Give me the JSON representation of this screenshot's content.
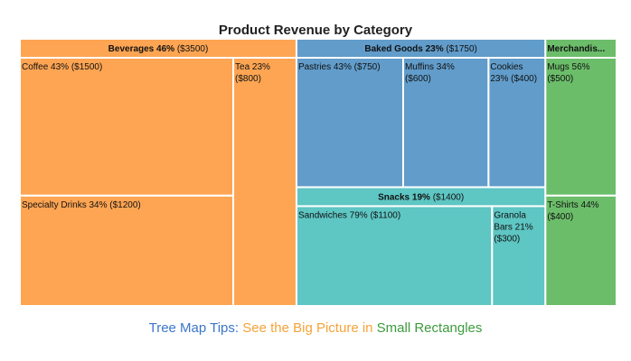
{
  "chart_data": {
    "type": "treemap",
    "title": "Product Revenue by Category",
    "value_prefix": "$",
    "categories": [
      {
        "name": "Beverages",
        "header": "Beverages 46%",
        "value_label": "($3500)",
        "percent": 46,
        "value": 3500,
        "color": "#fda553",
        "children": [
          {
            "name": "Coffee",
            "lines": [
              "Coffee 43% ($1500)"
            ],
            "percent": 43,
            "value": 1500
          },
          {
            "name": "Specialty Drinks",
            "lines": [
              "Specialty Drinks 34% ($1200)"
            ],
            "percent": 34,
            "value": 1200
          },
          {
            "name": "Tea",
            "lines": [
              "Tea 23%",
              "($800)"
            ],
            "percent": 23,
            "value": 800
          }
        ]
      },
      {
        "name": "Baked Goods",
        "header": "Baked Goods 23%",
        "value_label": "($1750)",
        "percent": 23,
        "value": 1750,
        "color": "#619cca",
        "children": [
          {
            "name": "Pastries",
            "lines": [
              "Pastries 43% ($750)"
            ],
            "percent": 43,
            "value": 750
          },
          {
            "name": "Muffins",
            "lines": [
              "Muffins 34%",
              "($600)"
            ],
            "percent": 34,
            "value": 600
          },
          {
            "name": "Cookies",
            "lines": [
              "Cookies",
              "23% ($400)"
            ],
            "percent": 23,
            "value": 400
          }
        ]
      },
      {
        "name": "Snacks",
        "header": "Snacks 19%",
        "value_label": "($1400)",
        "percent": 19,
        "value": 1400,
        "color": "#5ec6c3",
        "children": [
          {
            "name": "Sandwiches",
            "lines": [
              "Sandwiches 79% ($1100)"
            ],
            "percent": 79,
            "value": 1100
          },
          {
            "name": "Granola Bars",
            "lines": [
              "Granola",
              "Bars 21%",
              "($300)"
            ],
            "percent": 21,
            "value": 300
          }
        ]
      },
      {
        "name": "Merchandise",
        "header": "Merchandis...",
        "value_label": "",
        "percent": 12,
        "value": 900,
        "color": "#6bbd6a",
        "children": [
          {
            "name": "Mugs",
            "lines": [
              "Mugs 56%",
              "($500)"
            ],
            "percent": 56,
            "value": 500
          },
          {
            "name": "T-Shirts",
            "lines": [
              "T-Shirts 44%",
              "($400)"
            ],
            "percent": 44,
            "value": 400
          }
        ]
      }
    ]
  },
  "caption": {
    "part1": "Tree Map Tips: ",
    "part2": "See the Big Picture in ",
    "part3": "Small Rectangles",
    "color1": "#3b76c9",
    "color2": "#f5a338",
    "color3": "#3d9b3d"
  }
}
